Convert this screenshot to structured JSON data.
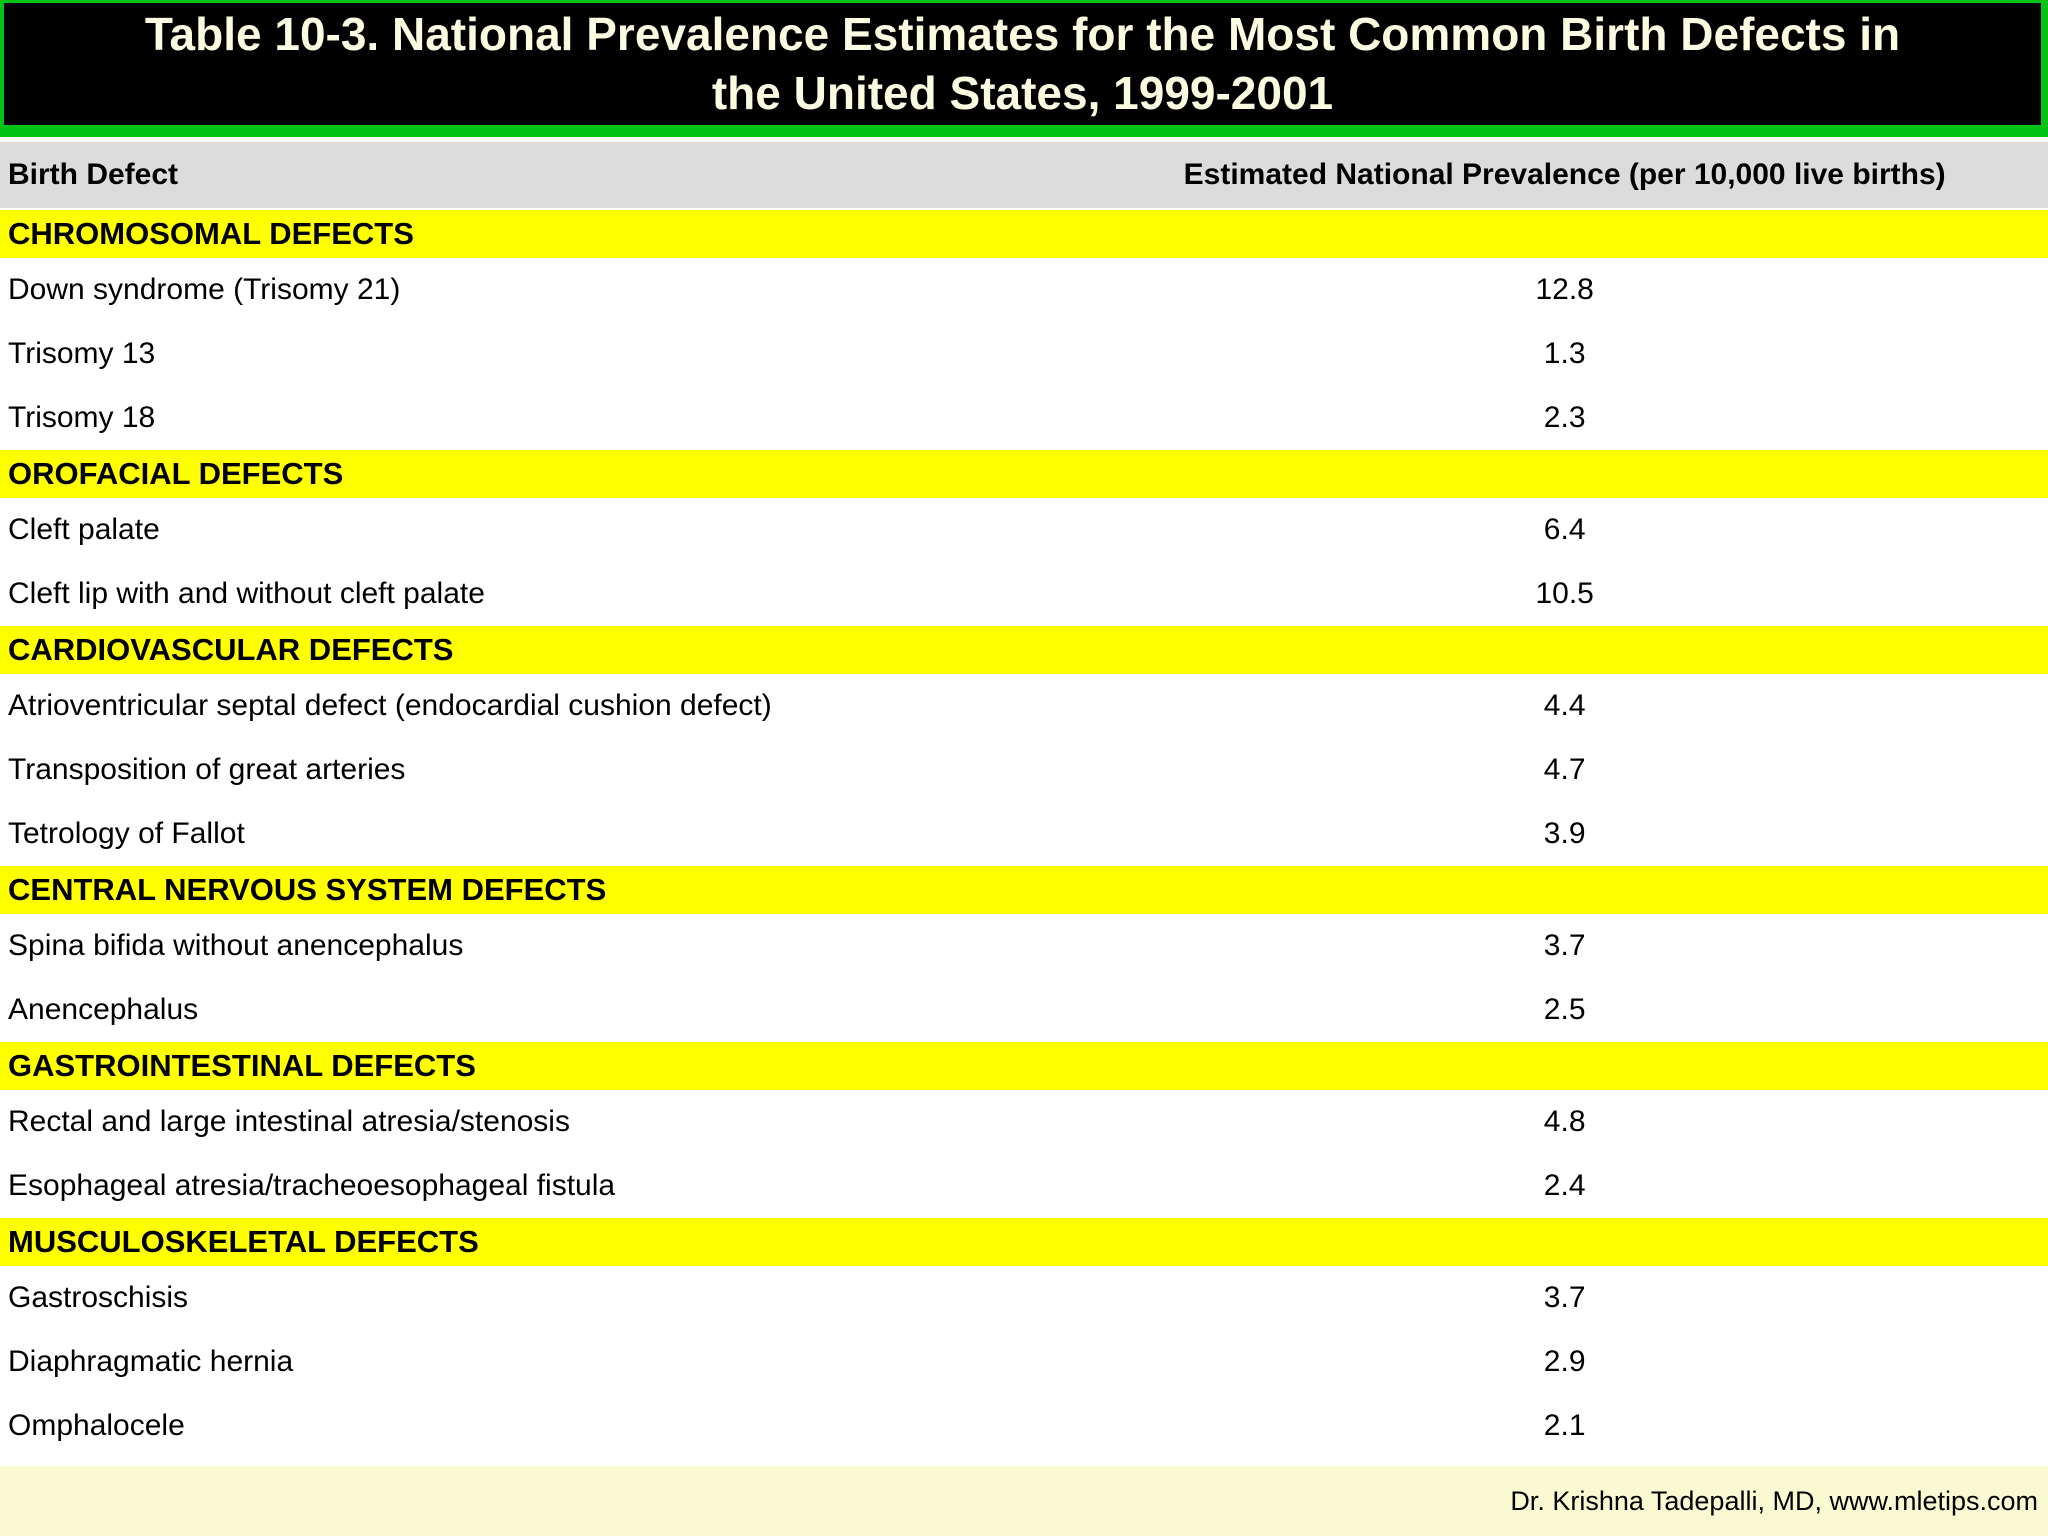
{
  "title": {
    "lines": [
      "Table 10-3. National Prevalence Estimates for the Most Common Birth Defects in",
      "the United States, 1999-2001"
    ]
  },
  "columns": {
    "defect": "Birth Defect",
    "prevalence": "Estimated National Prevalence (per 10,000 live births)"
  },
  "sections": [
    {
      "header": "CHROMOSOMAL DEFECTS",
      "rows": [
        {
          "defect": "Down syndrome (Trisomy 21)",
          "value": "12.8"
        },
        {
          "defect": "Trisomy 13",
          "value": "1.3"
        },
        {
          "defect": "Trisomy 18",
          "value": "2.3"
        }
      ]
    },
    {
      "header": "OROFACIAL DEFECTS",
      "rows": [
        {
          "defect": "Cleft palate",
          "value": "6.4"
        },
        {
          "defect": "Cleft lip with and without cleft palate",
          "value": "10.5"
        }
      ]
    },
    {
      "header": "CARDIOVASCULAR DEFECTS",
      "rows": [
        {
          "defect": "Atrioventricular septal defect (endocardial cushion defect)",
          "value": "4.4"
        },
        {
          "defect": "Transposition of great arteries",
          "value": "4.7"
        },
        {
          "defect": "Tetrology of Fallot",
          "value": "3.9"
        }
      ]
    },
    {
      "header": "CENTRAL NERVOUS SYSTEM DEFECTS",
      "rows": [
        {
          "defect": "Spina bifida without anencephalus",
          "value": "3.7"
        },
        {
          "defect": "Anencephalus",
          "value": "2.5"
        }
      ]
    },
    {
      "header": "GASTROINTESTINAL DEFECTS",
      "rows": [
        {
          "defect": "Rectal and large intestinal atresia/stenosis",
          "value": "4.8"
        },
        {
          "defect": "Esophageal atresia/tracheoesophageal fistula",
          "value": "2.4"
        }
      ]
    },
    {
      "header": "MUSCULOSKELETAL DEFECTS",
      "rows": [
        {
          "defect": "Gastroschisis",
          "value": "3.7"
        },
        {
          "defect": "Diaphragmatic hernia",
          "value": "2.9"
        },
        {
          "defect": "Omphalocele",
          "value": "2.1"
        }
      ]
    }
  ],
  "footer": {
    "credit": "Dr. Krishna Tadepalli, MD, www.mletips.com"
  },
  "colors": {
    "border_green": "#00c316",
    "title_bg": "#000000",
    "title_text": "#fbfbe1",
    "header_gray": "#dcdcdc",
    "section_yellow": "#ffff00",
    "row_bg": "#ffffff",
    "footer_bg": "#fafad2",
    "text": "#000000"
  }
}
